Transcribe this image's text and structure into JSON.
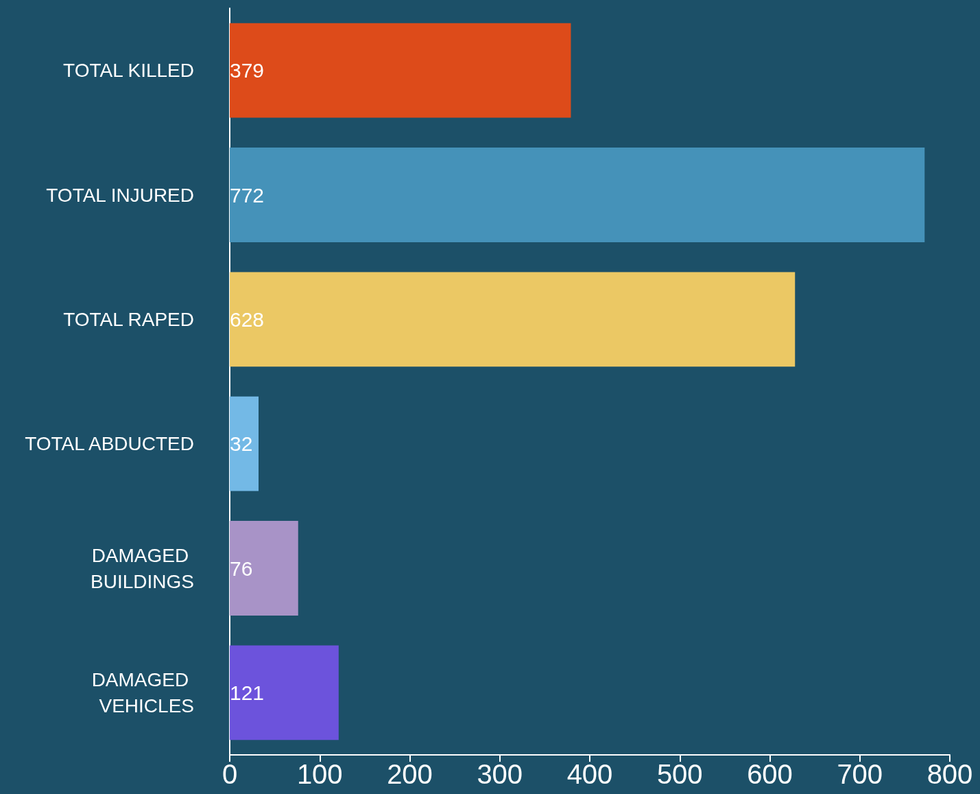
{
  "chart_data": {
    "type": "bar",
    "orientation": "horizontal",
    "categories": [
      "TOTAL KILLED",
      "TOTAL INJURED",
      "TOTAL RAPED",
      "TOTAL ABDUCTED",
      "DAMAGED BUILDINGS",
      "DAMAGED VEHICLES"
    ],
    "values": [
      379,
      772,
      628,
      32,
      76,
      121
    ],
    "colors": [
      "#dd4b1a",
      "#4592b9",
      "#ebc864",
      "#73b9e6",
      "#a893c7",
      "#6c53dc"
    ],
    "xlim": [
      0,
      800
    ],
    "xticks": [
      0,
      100,
      200,
      300,
      400,
      500,
      600,
      700,
      800
    ],
    "data_labels": true,
    "grid": false
  }
}
